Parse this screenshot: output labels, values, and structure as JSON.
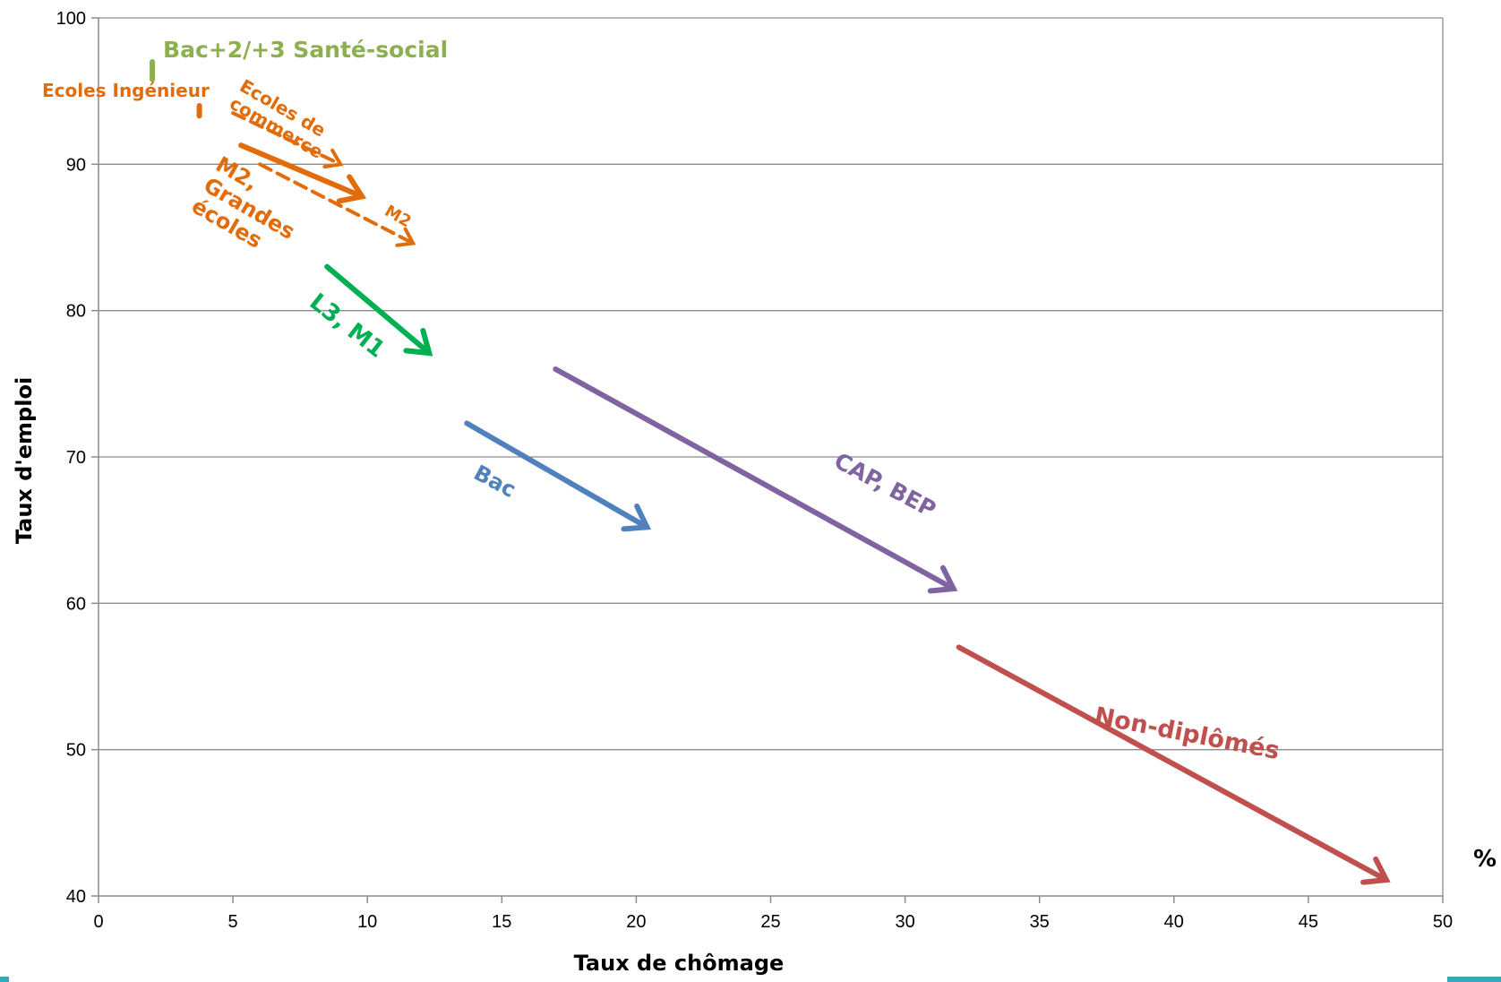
{
  "chart_data": {
    "type": "line",
    "title": "",
    "xlabel": "Taux de chômage",
    "ylabel": "Taux d'emploi",
    "unit_label": "%",
    "xlim": [
      0,
      50
    ],
    "ylim": [
      40,
      100
    ],
    "xticks": [
      0,
      5,
      10,
      15,
      20,
      25,
      30,
      35,
      40,
      45,
      50
    ],
    "yticks": [
      40,
      50,
      60,
      70,
      80,
      90,
      100
    ],
    "grid": "horizontal",
    "legend": "none",
    "series": [
      {
        "name": "Bac+2/+3 Santé-social",
        "color": "#8db04f",
        "points": [
          [
            2.0,
            97.0
          ],
          [
            2.0,
            95.8
          ]
        ],
        "style": "solid",
        "arrow": false,
        "label_pos": [
          2.4,
          97.3
        ],
        "label_size": 25,
        "label_rotate": 0
      },
      {
        "name": "Ecoles Ingénieur",
        "color": "#e36c0a",
        "points": [
          [
            3.75,
            94.0
          ],
          [
            3.75,
            93.3
          ]
        ],
        "style": "solid",
        "arrow": false,
        "label_pos": [
          -2.1,
          94.6
        ],
        "label_size": 20,
        "label_rotate": 0
      },
      {
        "name": "Ecoles de commerce",
        "color": "#e36c0a",
        "points": [
          [
            5.0,
            93.5
          ],
          [
            9.0,
            90.0
          ]
        ],
        "style": "dashed",
        "arrow": true,
        "label_pos": [
          5.2,
          95.1
        ],
        "label_size": 20,
        "label_rotate": 30,
        "label_lines": [
          "Ecoles de",
          "commerce"
        ]
      },
      {
        "name": "M2, Grandes écoles",
        "color": "#e36c0a",
        "points": [
          [
            5.3,
            91.3
          ],
          [
            9.8,
            87.8
          ]
        ],
        "style": "solid",
        "arrow": true,
        "label_pos": [
          4.3,
          89.7
        ],
        "label_size": 24,
        "label_rotate": 30,
        "label_lines": [
          "M2,",
          "Grandes",
          "écoles"
        ]
      },
      {
        "name": "M2",
        "color": "#e36c0a",
        "points": [
          [
            6.0,
            90.0
          ],
          [
            11.7,
            84.6
          ]
        ],
        "style": "dashed",
        "arrow": true,
        "label_pos": [
          10.6,
          86.6
        ],
        "label_size": 18,
        "label_rotate": 30
      },
      {
        "name": "L3, M1",
        "color": "#00b050",
        "points": [
          [
            8.5,
            83.0
          ],
          [
            12.3,
            77.1
          ]
        ],
        "style": "solid",
        "arrow": true,
        "label_pos": [
          7.8,
          80.4
        ],
        "label_size": 26,
        "label_rotate": 38
      },
      {
        "name": "Bac",
        "color": "#4f81bd",
        "points": [
          [
            13.7,
            72.3
          ],
          [
            20.4,
            65.2
          ]
        ],
        "style": "solid",
        "arrow": true,
        "label_pos": [
          13.9,
          68.6
        ],
        "label_size": 24,
        "label_rotate": 28
      },
      {
        "name": "CAP, BEP",
        "color": "#8064a2",
        "points": [
          [
            17.0,
            76.0
          ],
          [
            31.8,
            61.0
          ]
        ],
        "style": "solid",
        "arrow": true,
        "label_pos": [
          27.3,
          69.4
        ],
        "label_size": 25,
        "label_rotate": 28
      },
      {
        "name": "Non-diplômés",
        "color": "#c0504d",
        "points": [
          [
            32.0,
            57.0
          ],
          [
            47.9,
            41.1
          ]
        ],
        "style": "solid",
        "arrow": true,
        "label_pos": [
          37.0,
          51.8
        ],
        "label_size": 27,
        "label_rotate": 11
      }
    ]
  }
}
